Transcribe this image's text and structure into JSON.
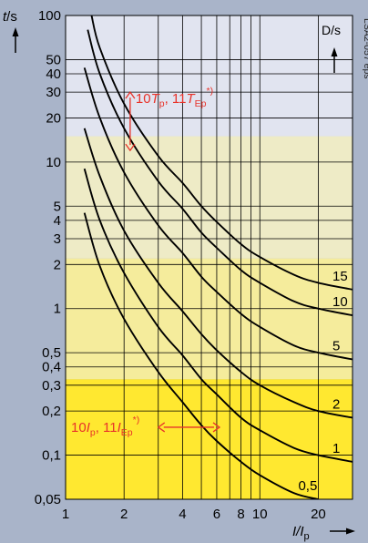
{
  "chart_data": {
    "type": "line",
    "figure_id": "LSA2-057 eps",
    "x_scale": "log",
    "y_scale": "log",
    "xlim": [
      1,
      30
    ],
    "ylim": [
      0.05,
      100
    ],
    "x_ticks": [
      {
        "value": 1,
        "label": "1"
      },
      {
        "value": 2,
        "label": "2"
      },
      {
        "value": 4,
        "label": "4"
      },
      {
        "value": 6,
        "label": "6"
      },
      {
        "value": 8,
        "label": "8"
      },
      {
        "value": 10,
        "label": "10"
      },
      {
        "value": 20,
        "label": "20"
      }
    ],
    "x_grid": [
      1,
      2,
      3,
      4,
      5,
      6,
      7,
      8,
      9,
      10,
      20,
      30
    ],
    "y_ticks": [
      {
        "value": 0.05,
        "label": "0,05"
      },
      {
        "value": 0.1,
        "label": "0,1"
      },
      {
        "value": 0.2,
        "label": "0,2"
      },
      {
        "value": 0.3,
        "label": "0,3"
      },
      {
        "value": 0.4,
        "label": "0,4"
      },
      {
        "value": 0.5,
        "label": "0,5"
      },
      {
        "value": 1,
        "label": "1"
      },
      {
        "value": 2,
        "label": "2"
      },
      {
        "value": 3,
        "label": "3"
      },
      {
        "value": 4,
        "label": "4"
      },
      {
        "value": 5,
        "label": "5"
      },
      {
        "value": 10,
        "label": "10"
      },
      {
        "value": 20,
        "label": "20"
      },
      {
        "value": 30,
        "label": "30"
      },
      {
        "value": 40,
        "label": "40"
      },
      {
        "value": 50,
        "label": "50"
      },
      {
        "value": 100,
        "label": "100"
      }
    ],
    "y_grid": [
      0.05,
      0.1,
      0.2,
      0.3,
      0.4,
      0.5,
      1,
      2,
      3,
      4,
      5,
      10,
      20,
      30,
      40,
      50,
      100
    ],
    "ylabel": {
      "main": "t",
      "unit": "/s"
    },
    "xlabel": {
      "main": "I/I",
      "sub": "p"
    },
    "series_label_header": "D/s",
    "bands": [
      {
        "from": 0.05,
        "to": 0.33,
        "color": "#ffe830"
      },
      {
        "from": 0.33,
        "to": 2.2,
        "color": "#f5ec9c"
      },
      {
        "from": 2.2,
        "to": 15,
        "color": "#eeebc6"
      },
      {
        "from": 15,
        "to": 100,
        "color": "#e1e4f0"
      }
    ],
    "series": [
      {
        "name": "0,5",
        "values": [
          [
            1.25,
            4.5
          ],
          [
            1.5,
            1.95
          ],
          [
            2,
            0.85
          ],
          [
            3,
            0.37
          ],
          [
            4,
            0.23
          ],
          [
            5,
            0.16
          ],
          [
            6,
            0.125
          ],
          [
            8,
            0.09
          ],
          [
            10,
            0.073
          ],
          [
            15,
            0.055
          ],
          [
            20,
            0.05
          ]
        ]
      },
      {
        "name": "1",
        "values": [
          [
            1.25,
            9
          ],
          [
            1.5,
            4.0
          ],
          [
            2,
            1.75
          ],
          [
            3,
            0.75
          ],
          [
            4,
            0.48
          ],
          [
            5,
            0.33
          ],
          [
            6,
            0.26
          ],
          [
            8,
            0.18
          ],
          [
            10,
            0.148
          ],
          [
            15,
            0.112
          ],
          [
            20,
            0.1
          ],
          [
            30,
            0.09
          ]
        ]
      },
      {
        "name": "2",
        "values": [
          [
            1.25,
            17
          ],
          [
            1.5,
            8.0
          ],
          [
            2,
            3.4
          ],
          [
            3,
            1.5
          ],
          [
            4,
            0.96
          ],
          [
            5,
            0.67
          ],
          [
            6,
            0.52
          ],
          [
            8,
            0.37
          ],
          [
            10,
            0.3
          ],
          [
            15,
            0.23
          ],
          [
            20,
            0.2
          ],
          [
            30,
            0.18
          ]
        ]
      },
      {
        "name": "5",
        "values": [
          [
            1.25,
            44
          ],
          [
            1.5,
            20
          ],
          [
            2,
            8.5
          ],
          [
            3,
            3.7
          ],
          [
            4,
            2.4
          ],
          [
            5,
            1.65
          ],
          [
            6,
            1.3
          ],
          [
            8,
            0.92
          ],
          [
            10,
            0.75
          ],
          [
            15,
            0.56
          ],
          [
            20,
            0.5
          ],
          [
            30,
            0.45
          ]
        ]
      },
      {
        "name": "10",
        "values": [
          [
            1.3,
            80
          ],
          [
            1.5,
            40
          ],
          [
            2,
            17
          ],
          [
            3,
            7.4
          ],
          [
            4,
            4.8
          ],
          [
            5,
            3.3
          ],
          [
            6,
            2.6
          ],
          [
            8,
            1.83
          ],
          [
            10,
            1.5
          ],
          [
            15,
            1.12
          ],
          [
            20,
            1.0
          ],
          [
            30,
            0.9
          ]
        ]
      },
      {
        "name": "15",
        "values": [
          [
            1.36,
            100
          ],
          [
            1.5,
            60
          ],
          [
            2,
            25
          ],
          [
            3,
            11
          ],
          [
            4,
            7.2
          ],
          [
            5,
            5.0
          ],
          [
            6,
            3.9
          ],
          [
            8,
            2.75
          ],
          [
            10,
            2.25
          ],
          [
            15,
            1.7
          ],
          [
            20,
            1.5
          ],
          [
            30,
            1.35
          ]
        ]
      }
    ],
    "annotations": [
      {
        "type": "vertical-range",
        "x": 2.15,
        "y_from": 12,
        "y_to": 30,
        "color": "#e8332a",
        "parts": [
          {
            "t": "10"
          },
          {
            "t": "T",
            "i": true
          },
          {
            "t": "p",
            "sub": true
          },
          {
            "t": ", 11"
          },
          {
            "t": "T",
            "i": true
          },
          {
            "t": "Ep",
            "sub": true
          },
          {
            "t": "*)",
            "sup": true
          }
        ]
      },
      {
        "type": "horizontal-range",
        "y": 0.155,
        "x_from": 3.0,
        "x_to": 6.2,
        "color": "#e8332a",
        "parts": [
          {
            "t": "10"
          },
          {
            "t": "I",
            "i": true
          },
          {
            "t": "p",
            "sub": true
          },
          {
            "t": ", 11"
          },
          {
            "t": "I",
            "i": true
          },
          {
            "t": "Ep",
            "sub": true
          },
          {
            "t": "*)",
            "sup": true
          }
        ]
      }
    ],
    "legend": "series labels at right end of curves, header top-right",
    "grid": true
  }
}
